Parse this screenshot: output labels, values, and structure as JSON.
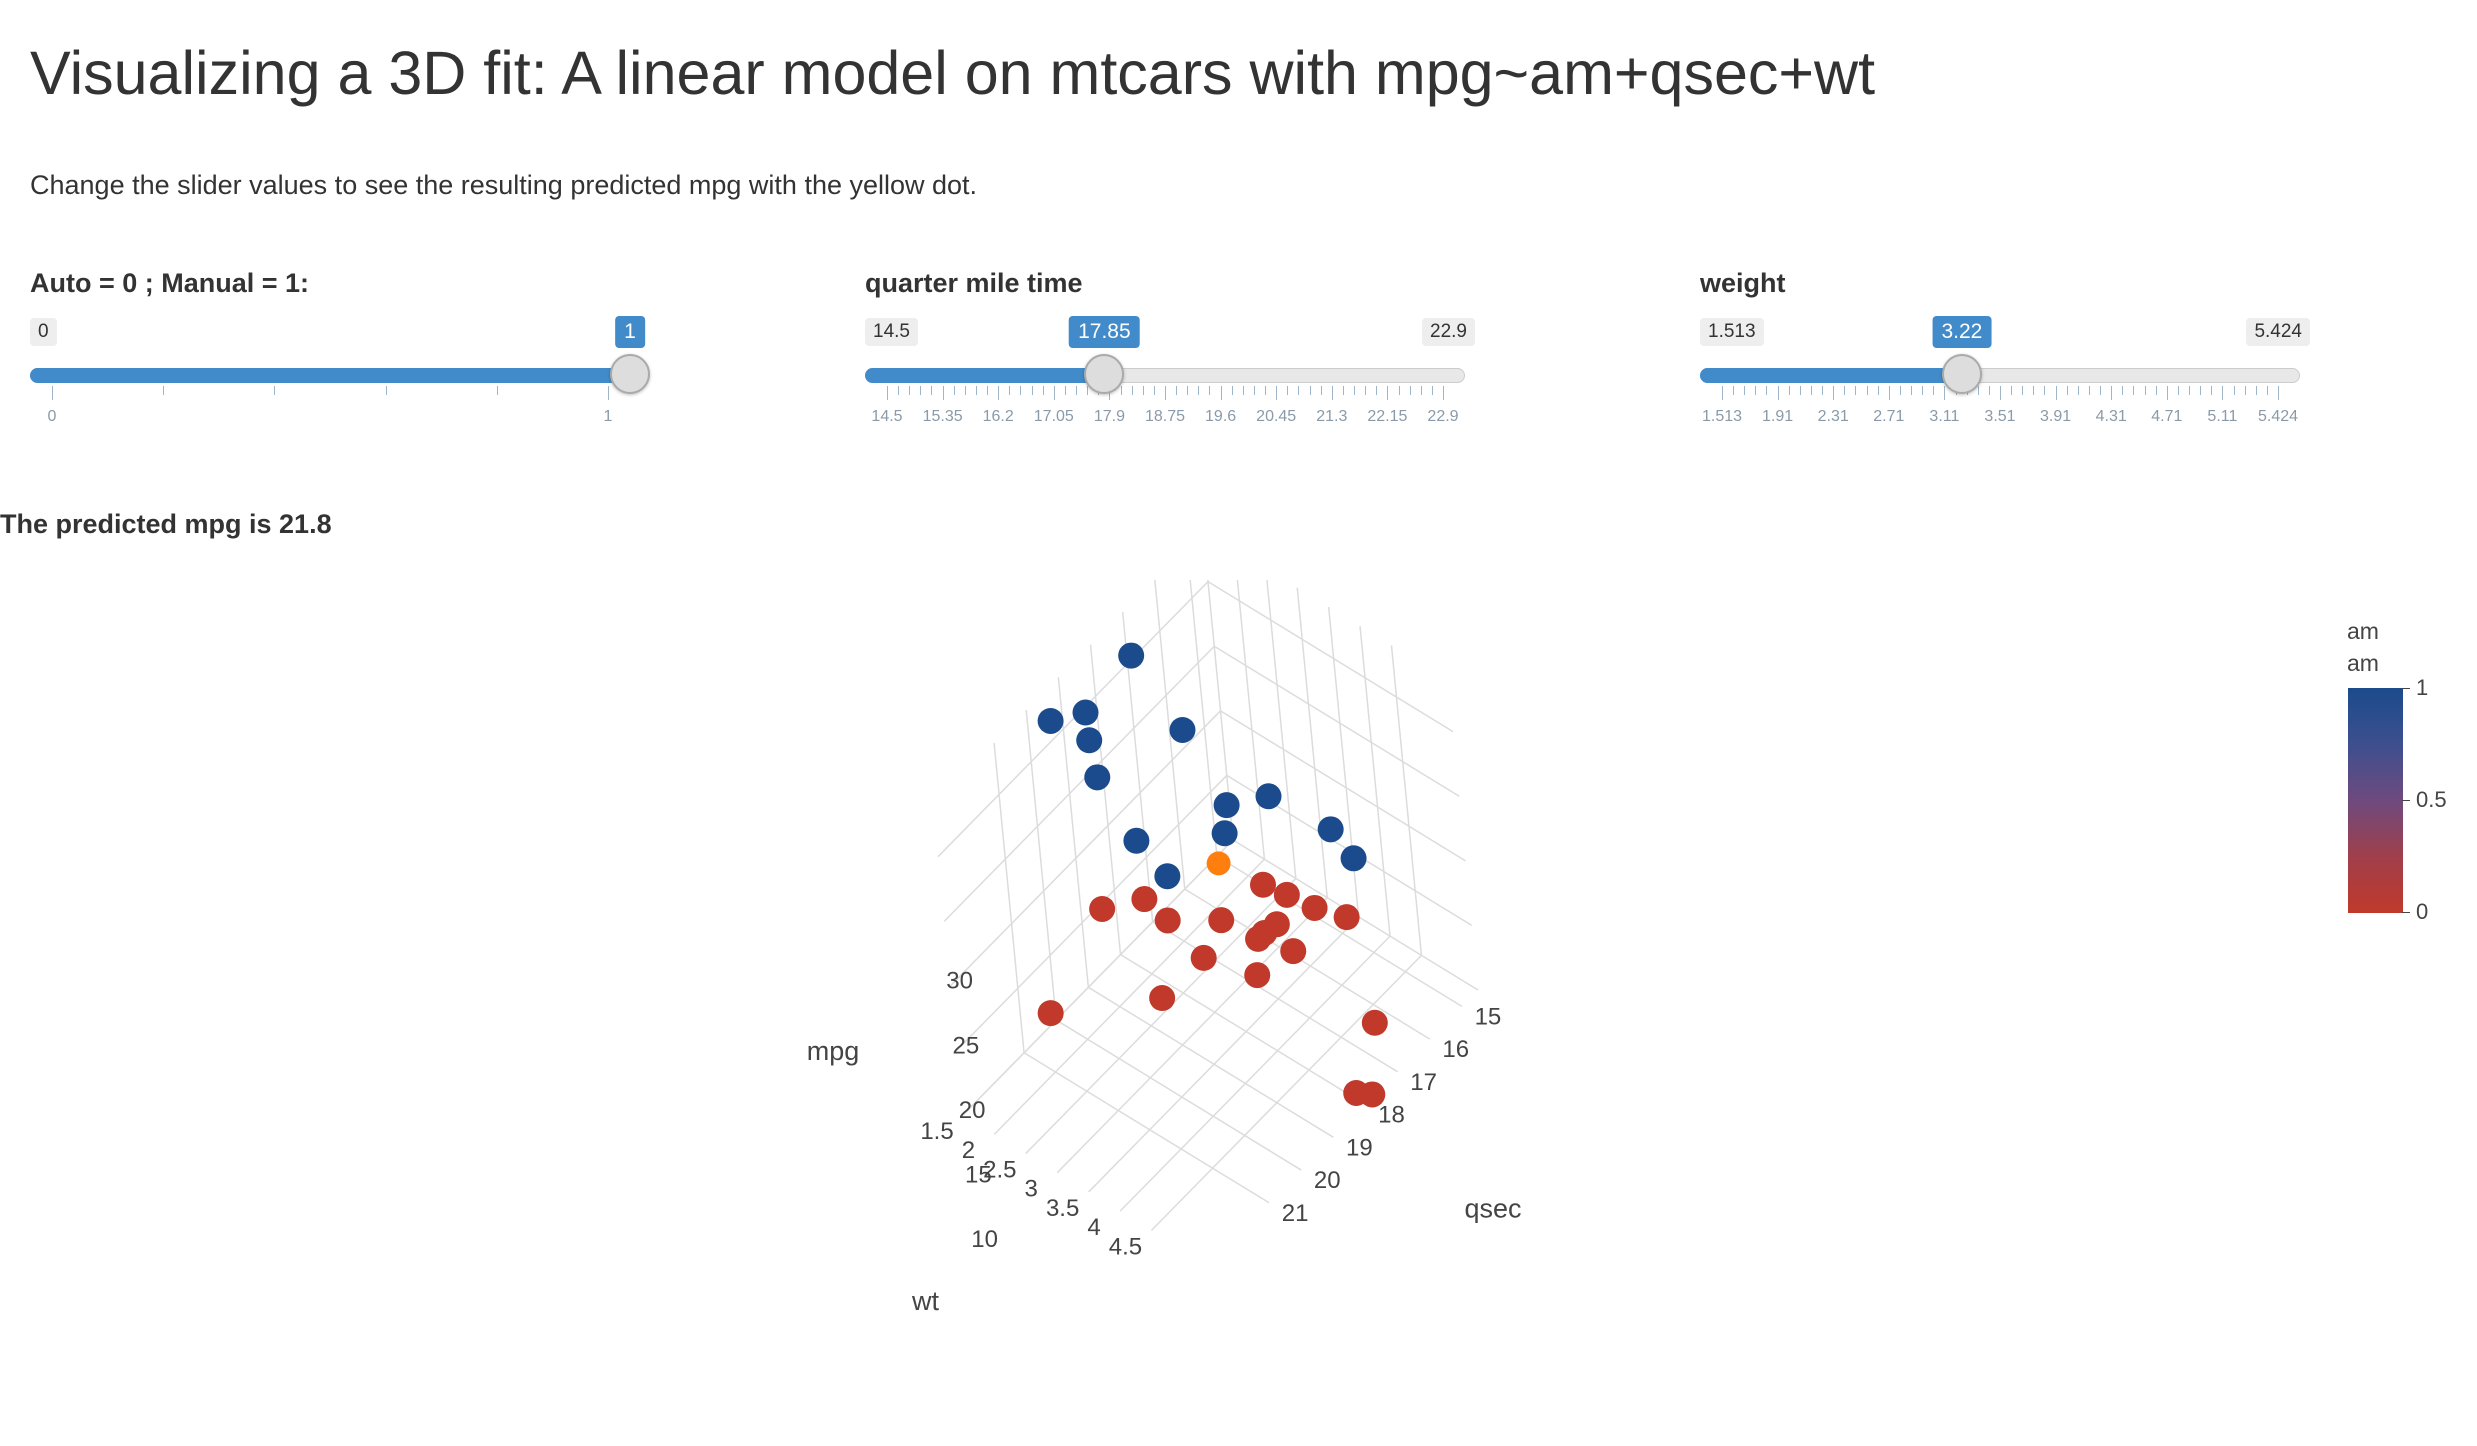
{
  "header": {
    "title": "Visualizing a 3D fit: A linear model on mtcars with mpg~am+qsec+wt",
    "intro": "Change the slider values to see the resulting predicted mpg with the yellow dot."
  },
  "sliders": {
    "am": {
      "label": "Auto = 0 ; Manual = 1:",
      "min": "0",
      "max": "1",
      "value": "1",
      "fraction": 1.0,
      "ticks": [
        "0",
        "1"
      ],
      "minor_ticks": 4
    },
    "qsec": {
      "label": "quarter mile time",
      "min": "14.5",
      "max": "22.9",
      "value": "17.85",
      "fraction": 0.399,
      "ticks": [
        "14.5",
        "15.35",
        "16.2",
        "17.05",
        "17.9",
        "18.75",
        "19.6",
        "20.45",
        "21.3",
        "22.15",
        "22.9"
      ],
      "minor_ticks": 4
    },
    "wt": {
      "label": "weight",
      "min": "1.513",
      "max": "5.424",
      "value": "3.22",
      "fraction": 0.4365,
      "ticks": [
        "1.513",
        "1.91",
        "2.31",
        "2.71",
        "3.11",
        "3.51",
        "3.91",
        "4.31",
        "4.71",
        "5.11",
        "5.424"
      ],
      "minor_ticks": 4
    }
  },
  "result": {
    "predicted_text": "The predicted mpg is 21.8"
  },
  "legend": {
    "title_line1": "am",
    "title_line2": "am",
    "labels": [
      "1",
      "0.5",
      "0"
    ],
    "color_high": "#1b4b8c",
    "color_low": "#c0392b"
  },
  "chart_data": {
    "type": "scatter3d",
    "x_axis": {
      "label": "qsec",
      "ticks": [
        "15",
        "16",
        "17",
        "18",
        "19",
        "20",
        "21"
      ],
      "range": [
        14.5,
        22.9
      ]
    },
    "y_axis": {
      "label": "wt",
      "ticks": [
        "1.5",
        "2",
        "2.5",
        "3",
        "3.5",
        "4",
        "4.5"
      ],
      "range": [
        1.5,
        5.4
      ]
    },
    "z_axis": {
      "label": "mpg",
      "ticks": [
        "10",
        "15",
        "20",
        "25",
        "30"
      ],
      "range": [
        10,
        34
      ]
    },
    "colorscale": "am (0 = red, 1 = blue)",
    "points": [
      {
        "qsec": 16.46,
        "wt": 2.62,
        "mpg": 21.0,
        "am": 1
      },
      {
        "qsec": 17.02,
        "wt": 2.875,
        "mpg": 21.0,
        "am": 1
      },
      {
        "qsec": 18.61,
        "wt": 2.32,
        "mpg": 22.8,
        "am": 1
      },
      {
        "qsec": 19.44,
        "wt": 3.215,
        "mpg": 21.4,
        "am": 0
      },
      {
        "qsec": 17.02,
        "wt": 3.44,
        "mpg": 18.7,
        "am": 0
      },
      {
        "qsec": 20.22,
        "wt": 3.46,
        "mpg": 18.1,
        "am": 0
      },
      {
        "qsec": 15.84,
        "wt": 3.57,
        "mpg": 14.3,
        "am": 0
      },
      {
        "qsec": 20.0,
        "wt": 3.19,
        "mpg": 24.4,
        "am": 0
      },
      {
        "qsec": 22.9,
        "wt": 3.15,
        "mpg": 22.8,
        "am": 0
      },
      {
        "qsec": 18.3,
        "wt": 3.44,
        "mpg": 19.2,
        "am": 0
      },
      {
        "qsec": 18.9,
        "wt": 3.44,
        "mpg": 17.8,
        "am": 0
      },
      {
        "qsec": 17.4,
        "wt": 4.07,
        "mpg": 16.4,
        "am": 0
      },
      {
        "qsec": 17.6,
        "wt": 3.73,
        "mpg": 17.3,
        "am": 0
      },
      {
        "qsec": 18.0,
        "wt": 3.78,
        "mpg": 15.2,
        "am": 0
      },
      {
        "qsec": 17.98,
        "wt": 5.25,
        "mpg": 10.4,
        "am": 0
      },
      {
        "qsec": 17.82,
        "wt": 5.424,
        "mpg": 10.4,
        "am": 0
      },
      {
        "qsec": 17.42,
        "wt": 5.345,
        "mpg": 14.7,
        "am": 0
      },
      {
        "qsec": 19.47,
        "wt": 2.2,
        "mpg": 32.4,
        "am": 1
      },
      {
        "qsec": 18.52,
        "wt": 1.615,
        "mpg": 30.4,
        "am": 1
      },
      {
        "qsec": 19.9,
        "wt": 1.835,
        "mpg": 33.9,
        "am": 1
      },
      {
        "qsec": 20.01,
        "wt": 2.465,
        "mpg": 21.5,
        "am": 0
      },
      {
        "qsec": 16.87,
        "wt": 3.52,
        "mpg": 15.5,
        "am": 0
      },
      {
        "qsec": 17.3,
        "wt": 3.435,
        "mpg": 15.2,
        "am": 0
      },
      {
        "qsec": 15.41,
        "wt": 3.84,
        "mpg": 13.3,
        "am": 0
      },
      {
        "qsec": 17.05,
        "wt": 3.845,
        "mpg": 19.2,
        "am": 0
      },
      {
        "qsec": 18.9,
        "wt": 1.935,
        "mpg": 27.3,
        "am": 1
      },
      {
        "qsec": 16.7,
        "wt": 2.14,
        "mpg": 26.0,
        "am": 1
      },
      {
        "qsec": 16.9,
        "wt": 1.513,
        "mpg": 30.4,
        "am": 1
      },
      {
        "qsec": 14.5,
        "wt": 3.17,
        "mpg": 15.8,
        "am": 1
      },
      {
        "qsec": 15.5,
        "wt": 2.77,
        "mpg": 19.7,
        "am": 1
      },
      {
        "qsec": 14.6,
        "wt": 3.57,
        "mpg": 15.0,
        "am": 1
      },
      {
        "qsec": 18.6,
        "wt": 2.78,
        "mpg": 21.4,
        "am": 1
      }
    ],
    "predicted_point": {
      "qsec": 17.85,
      "wt": 3.22,
      "mpg": 21.8,
      "color": "#ff7f0e"
    }
  }
}
